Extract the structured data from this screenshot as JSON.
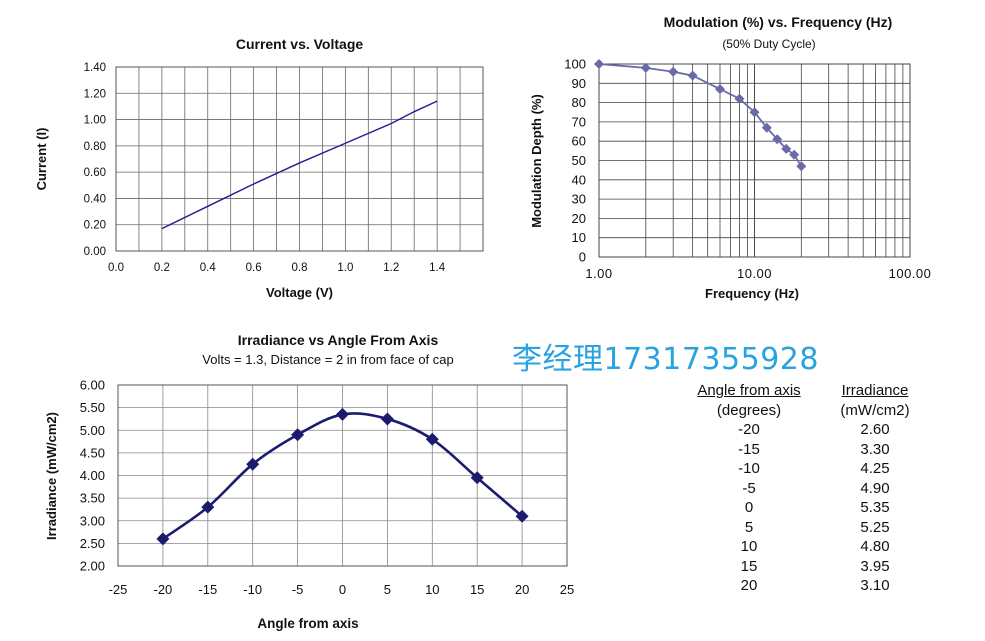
{
  "watermark": "李经理17317355928",
  "chart_data": [
    {
      "type": "line",
      "title": "Current vs. Voltage",
      "xlabel": "Voltage (V)",
      "ylabel": "Current (I)",
      "xlim": [
        0,
        1.6
      ],
      "ylim": [
        0,
        1.4
      ],
      "x_ticks": [
        "0.0",
        "0.2",
        "0.4",
        "0.6",
        "0.8",
        "1.0",
        "1.2",
        "1.4"
      ],
      "y_ticks": [
        "0.00",
        "0.20",
        "0.40",
        "0.60",
        "0.80",
        "1.00",
        "1.20",
        "1.40"
      ],
      "grid": true,
      "color": "#1f1f8f",
      "series": [
        {
          "x": [
            0.2,
            0.4,
            0.6,
            0.8,
            1.0,
            1.2,
            1.3,
            1.4
          ],
          "y": [
            0.17,
            0.34,
            0.51,
            0.67,
            0.82,
            0.97,
            1.06,
            1.14
          ]
        }
      ]
    },
    {
      "type": "line",
      "title": "Modulation (%) vs. Frequency (Hz)",
      "subtitle": "(50% Duty Cycle)",
      "xlabel": "Frequency (Hz)",
      "ylabel": "Modulation Depth (%)",
      "x_scale": "log",
      "xlim": [
        1,
        100
      ],
      "ylim": [
        0,
        100
      ],
      "x_ticks": [
        "1.00",
        "10.00",
        "100.00"
      ],
      "y_ticks": [
        "0",
        "10",
        "20",
        "30",
        "40",
        "50",
        "60",
        "70",
        "80",
        "90",
        "100"
      ],
      "grid": true,
      "color": "#6a6aa8",
      "series": [
        {
          "x": [
            1,
            2,
            3,
            4,
            6,
            8,
            10,
            12,
            14,
            16,
            18,
            20
          ],
          "y": [
            100,
            98,
            96,
            94,
            87,
            82,
            75,
            67,
            61,
            56,
            53,
            47
          ]
        }
      ]
    },
    {
      "type": "line",
      "title": "Irradiance vs Angle From Axis",
      "subtitle": "Volts = 1.3, Distance = 2 in from face of cap",
      "xlabel": "Angle from axis",
      "ylabel": "Irradiance (mW/cm2)",
      "xlim": [
        -25,
        25
      ],
      "ylim": [
        2.0,
        6.0
      ],
      "x_ticks": [
        "-25",
        "-20",
        "-15",
        "-10",
        "-5",
        "0",
        "5",
        "10",
        "15",
        "20",
        "25"
      ],
      "y_ticks": [
        "2.00",
        "2.50",
        "3.00",
        "3.50",
        "4.00",
        "4.50",
        "5.00",
        "5.50",
        "6.00"
      ],
      "grid": true,
      "color": "#1c1c6e",
      "series": [
        {
          "x": [
            -20,
            -15,
            -10,
            -5,
            0,
            5,
            10,
            15,
            20
          ],
          "y": [
            2.6,
            3.3,
            4.25,
            4.9,
            5.35,
            5.25,
            4.8,
            3.95,
            3.1
          ]
        }
      ]
    },
    {
      "type": "table",
      "columns": [
        {
          "header": "Angle from axis",
          "unit": "(degrees)"
        },
        {
          "header": "Irradiance",
          "unit": "(mW/cm2)"
        }
      ],
      "rows": [
        [
          "-20",
          "2.60"
        ],
        [
          "-15",
          "3.30"
        ],
        [
          "-10",
          "4.25"
        ],
        [
          "-5",
          "4.90"
        ],
        [
          "0",
          "5.35"
        ],
        [
          "5",
          "5.25"
        ],
        [
          "10",
          "4.80"
        ],
        [
          "15",
          "3.95"
        ],
        [
          "20",
          "3.10"
        ]
      ]
    }
  ]
}
